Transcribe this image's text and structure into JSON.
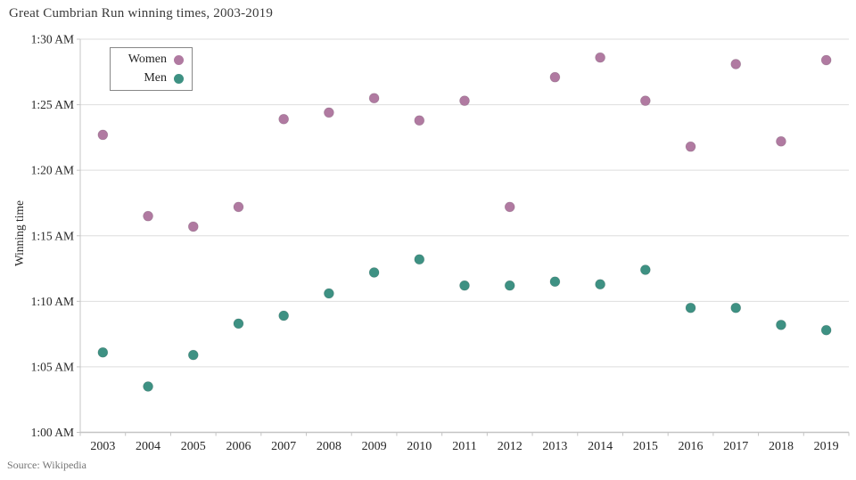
{
  "title": "Great Cumbrian Run winning times, 2003-2019",
  "source": "Source: Wikipedia",
  "legend": {
    "women_label": "Women",
    "men_label": "Men"
  },
  "colors": {
    "women": "#b07aa1",
    "men": "#3e9183",
    "grid": "#dedede",
    "axis": "#c4c4c4",
    "text": "#262626",
    "title_text": "#3a3a3a",
    "muted_text": "#757575",
    "background": "#ffffff"
  },
  "chart_data": {
    "type": "scatter",
    "title": "Great Cumbrian Run winning times, 2003-2019",
    "xlabel": "",
    "ylabel": "Winning time",
    "legend_position": "top-left",
    "grid": "horizontal",
    "categories": [
      "2003",
      "2004",
      "2005",
      "2006",
      "2007",
      "2008",
      "2009",
      "2010",
      "2011",
      "2012",
      "2013",
      "2014",
      "2015",
      "2016",
      "2017",
      "2018",
      "2019"
    ],
    "y_axis": {
      "unit": "clock time, minutes after 1:00 AM",
      "range_minutes": [
        0,
        30
      ],
      "tick_minutes": [
        0,
        5,
        10,
        15,
        20,
        25,
        30
      ],
      "tick_labels": [
        "1:00 AM",
        "1:05 AM",
        "1:10 AM",
        "1:15 AM",
        "1:20 AM",
        "1:25 AM",
        "1:30 AM"
      ]
    },
    "series": [
      {
        "name": "Women",
        "color": "#b07aa1",
        "values_minutes_after_1am": [
          22.7,
          16.5,
          15.7,
          17.2,
          23.9,
          24.4,
          25.5,
          23.8,
          25.3,
          17.2,
          27.1,
          28.6,
          25.3,
          21.8,
          28.1,
          22.2,
          28.4
        ]
      },
      {
        "name": "Men",
        "color": "#3e9183",
        "values_minutes_after_1am": [
          6.1,
          3.5,
          5.9,
          8.3,
          8.9,
          10.6,
          12.2,
          13.2,
          11.2,
          11.2,
          11.5,
          11.3,
          12.4,
          9.5,
          9.5,
          8.2,
          7.8
        ]
      }
    ]
  }
}
